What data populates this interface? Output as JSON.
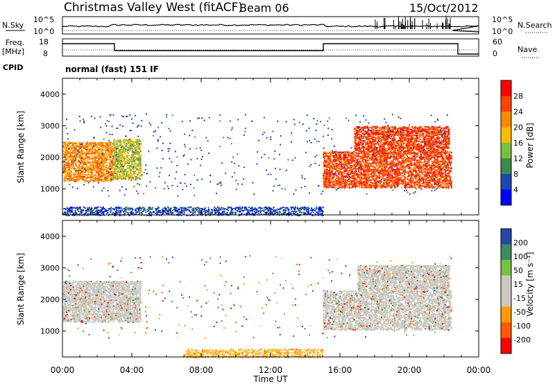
{
  "header": {
    "title": "Christmas Valley West (fitACF)",
    "beam": "Beam 06",
    "date": "15/Oct/2012"
  },
  "nsky_panel": {
    "label": "N.Sky",
    "ticks_left": [
      "10^5",
      "10^0"
    ],
    "ticks_right": [
      "10^5",
      "10^0"
    ],
    "right_label": "N.Search"
  },
  "freq_panel": {
    "label_line1": "Freq.",
    "label_line2": "[MHz]",
    "ticks_left": [
      "18",
      "8"
    ],
    "ticks_right": [
      "60",
      "0"
    ],
    "right_label": "Nave"
  },
  "cpid": {
    "label": "CPID",
    "value": "normal (fast) 151 IF"
  },
  "chart_data": [
    {
      "type": "heatmap",
      "name": "power",
      "ylabel": "Slant Range [km]",
      "xlabel": "Time UT",
      "x_ticks": [
        "00:00",
        "04:00",
        "08:00",
        "12:00",
        "16:00",
        "20:00",
        "00:00"
      ],
      "y_ticks": [
        "1000",
        "2000",
        "3000",
        "4000"
      ],
      "xlim_hours": [
        0,
        24
      ],
      "ylim_km": [
        180,
        4500
      ],
      "colorbar": {
        "label": "Power [dB]",
        "ticks": [
          "28",
          "24",
          "20",
          "16",
          "12",
          "8",
          "4"
        ],
        "colors": [
          "#ff0000",
          "#ff4400",
          "#ff8800",
          "#ffbb00",
          "#78c040",
          "#3c8a50",
          "#1c48b0",
          "#0000ff"
        ]
      },
      "features": [
        {
          "desc": "band",
          "t0": 0.0,
          "t1": 2.9,
          "r0": 1250,
          "r1": 2500,
          "level": 22
        },
        {
          "desc": "band",
          "t0": 2.9,
          "t1": 4.5,
          "r0": 1300,
          "r1": 2600,
          "level": 16
        },
        {
          "desc": "band",
          "t0": 15.0,
          "t1": 22.4,
          "r0": 1050,
          "r1": 2200,
          "level": 26
        },
        {
          "desc": "band",
          "t0": 16.8,
          "t1": 22.3,
          "r0": 2200,
          "r1": 3000,
          "level": 27
        },
        {
          "desc": "ground",
          "t0": 0.0,
          "t1": 15.0,
          "r0": 180,
          "r1": 450,
          "level": 6
        }
      ]
    },
    {
      "type": "heatmap",
      "name": "velocity",
      "ylabel": "Slant Range [km]",
      "xlabel": "Time UT",
      "x_ticks": [
        "00:00",
        "04:00",
        "08:00",
        "12:00",
        "16:00",
        "20:00",
        "00:00"
      ],
      "y_ticks": [
        "1000",
        "2000",
        "3000",
        "4000"
      ],
      "xlim_hours": [
        0,
        24
      ],
      "ylim_km": [
        180,
        4500
      ],
      "colorbar": {
        "label": "Velocity [m s⁻¹]",
        "ticks": [
          "200",
          "100",
          "50",
          "15",
          "-15",
          "-50",
          "-100",
          "-200"
        ],
        "colors": [
          "#2848a8",
          "#3e8a60",
          "#78c040",
          "#c8c8c0",
          "#c8c8c0",
          "#ff9a00",
          "#ff5a00",
          "#ff0000"
        ]
      },
      "features": [
        {
          "desc": "gray-band",
          "t0": 0.0,
          "t1": 4.5,
          "r0": 1300,
          "r1": 2600,
          "velocity": 0
        },
        {
          "desc": "gray-band",
          "t0": 15.0,
          "t1": 22.4,
          "r0": 1050,
          "r1": 2300,
          "velocity": 0
        },
        {
          "desc": "gray-band",
          "t0": 17.0,
          "t1": 22.3,
          "r0": 2300,
          "r1": 3100,
          "velocity": 0
        },
        {
          "desc": "orange-ground",
          "t0": 7.0,
          "t1": 15.0,
          "r0": 180,
          "r1": 450,
          "velocity": -40
        }
      ]
    }
  ]
}
